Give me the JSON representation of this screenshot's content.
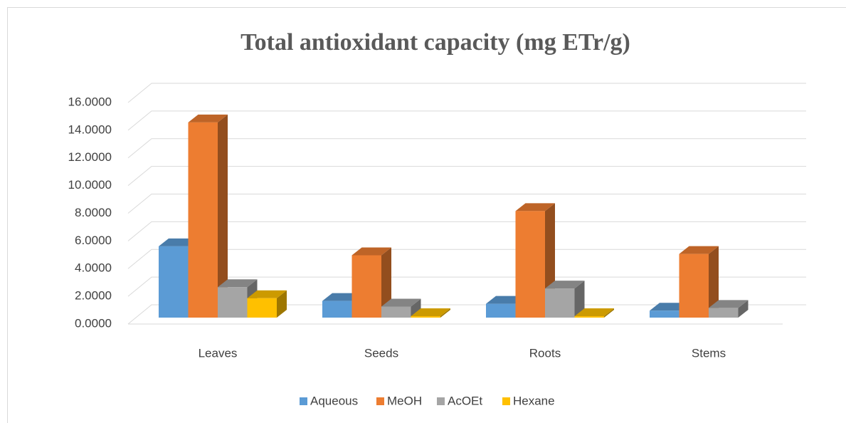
{
  "chart_data": {
    "type": "bar3d",
    "title": "Total antioxidant capacity (mg ETr/g)",
    "categories": [
      "Leaves",
      "Seeds",
      "Roots",
      "Stems"
    ],
    "series": [
      {
        "name": "Aqueous",
        "color": "#5b9bd5",
        "values": [
          5.15,
          1.2,
          1.0,
          0.5
        ]
      },
      {
        "name": "MeOH",
        "color": "#ed7d31",
        "values": [
          14.1,
          4.5,
          7.7,
          4.6
        ]
      },
      {
        "name": "AcOEt",
        "color": "#a5a5a5",
        "values": [
          2.2,
          0.8,
          2.1,
          0.7
        ]
      },
      {
        "name": "Hexane",
        "color": "#ffc000",
        "values": [
          1.4,
          0.1,
          0.1,
          null
        ]
      }
    ],
    "ylim": [
      0,
      16
    ],
    "yticks": [
      {
        "value": 0,
        "label": "0.0000"
      },
      {
        "value": 2,
        "label": "2.0000"
      },
      {
        "value": 4,
        "label": "4.0000"
      },
      {
        "value": 6,
        "label": "6.0000"
      },
      {
        "value": 8,
        "label": "8.0000"
      },
      {
        "value": 10,
        "label": "10.0000"
      },
      {
        "value": 12,
        "label": "12.0000"
      },
      {
        "value": 14,
        "label": "14.0000"
      },
      {
        "value": 16,
        "label": "16.0000"
      }
    ],
    "grid": true,
    "legend": "bottom"
  }
}
